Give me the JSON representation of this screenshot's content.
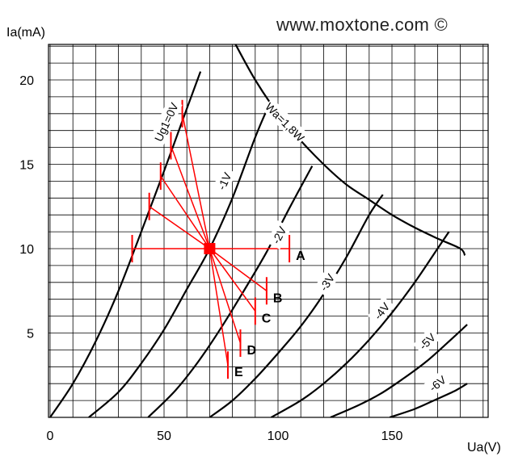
{
  "watermark": "www.moxtone.com ©",
  "chart_data": {
    "type": "line",
    "xlabel": "Ua(V)",
    "ylabel": "Ia(mA)",
    "xlim": [
      0,
      190
    ],
    "ylim": [
      0,
      22
    ],
    "xticks": [
      0,
      50,
      100,
      150
    ],
    "yticks": [
      5,
      10,
      15,
      20
    ],
    "grid": true,
    "curves": [
      {
        "name": "Ug1=0V",
        "color": "#000000",
        "points": [
          [
            0,
            0
          ],
          [
            10,
            2
          ],
          [
            20,
            4.5
          ],
          [
            30,
            7.5
          ],
          [
            40,
            11
          ],
          [
            50,
            14.6
          ],
          [
            60,
            18.3
          ],
          [
            66,
            20.5
          ]
        ]
      },
      {
        "name": "-1V",
        "color": "#000000",
        "points": [
          [
            17,
            0
          ],
          [
            30,
            1.5
          ],
          [
            40,
            3.2
          ],
          [
            50,
            5.2
          ],
          [
            60,
            7.6
          ],
          [
            70,
            10
          ],
          [
            80,
            13
          ],
          [
            90,
            16.6
          ],
          [
            96,
            18.5
          ]
        ]
      },
      {
        "name": "-2V",
        "color": "#000000",
        "points": [
          [
            43,
            0
          ],
          [
            55,
            1.6
          ],
          [
            65,
            3.3
          ],
          [
            75,
            5.3
          ],
          [
            85,
            7.5
          ],
          [
            95,
            9.8
          ],
          [
            105,
            12.4
          ],
          [
            115,
            14.9
          ]
        ]
      },
      {
        "name": "-3V",
        "color": "#000000",
        "points": [
          [
            70,
            0
          ],
          [
            80,
            1
          ],
          [
            90,
            2.3
          ],
          [
            100,
            3.8
          ],
          [
            110,
            5.4
          ],
          [
            120,
            7.3
          ],
          [
            130,
            9.5
          ],
          [
            140,
            12
          ],
          [
            146,
            13.2
          ]
        ]
      },
      {
        "name": "-4V",
        "color": "#000000",
        "points": [
          [
            97,
            0
          ],
          [
            110,
            1
          ],
          [
            120,
            2
          ],
          [
            130,
            3.2
          ],
          [
            140,
            4.6
          ],
          [
            150,
            6.2
          ],
          [
            160,
            8
          ],
          [
            170,
            10
          ],
          [
            175,
            11
          ]
        ]
      },
      {
        "name": "-5V",
        "color": "#000000",
        "points": [
          [
            123,
            0
          ],
          [
            135,
            0.7
          ],
          [
            145,
            1.4
          ],
          [
            155,
            2.3
          ],
          [
            165,
            3.3
          ],
          [
            175,
            4.5
          ],
          [
            183,
            5.5
          ]
        ]
      },
      {
        "name": "-6V",
        "color": "#000000",
        "points": [
          [
            149,
            0
          ],
          [
            160,
            0.5
          ],
          [
            170,
            1.1
          ],
          [
            178,
            1.6
          ],
          [
            183,
            2
          ]
        ]
      },
      {
        "name": "Wa=1,8W",
        "color": "#000000",
        "points": [
          [
            81,
            22.2
          ],
          [
            90,
            20
          ],
          [
            100,
            18
          ],
          [
            110,
            16.4
          ],
          [
            120,
            15
          ],
          [
            130,
            13.8
          ],
          [
            140,
            12.9
          ],
          [
            150,
            12
          ],
          [
            160,
            11.25
          ],
          [
            170,
            10.6
          ],
          [
            180,
            10
          ],
          [
            182,
            9.6
          ]
        ]
      }
    ],
    "curve_labels": [
      {
        "text": "Ug1=0V",
        "x": 51,
        "y": 17.5,
        "angle": -65
      },
      {
        "text": "-1V",
        "x": 76.5,
        "y": 14,
        "angle": -65
      },
      {
        "text": "Wa=1,8W",
        "x": 103,
        "y": 17.5,
        "angle": 45
      },
      {
        "text": "-2V",
        "x": 100.5,
        "y": 10.8,
        "angle": -62
      },
      {
        "text": "-3V",
        "x": 121.5,
        "y": 8,
        "angle": -58
      },
      {
        "text": "-4V",
        "x": 145.5,
        "y": 6.3,
        "angle": -52
      },
      {
        "text": "-5V",
        "x": 165.5,
        "y": 4.5,
        "angle": -45
      },
      {
        "text": "-6V",
        "x": 170,
        "y": 2,
        "angle": -38
      }
    ],
    "operating_point": {
      "x": 70,
      "y": 10,
      "color": "#ff0000"
    },
    "load_lines": {
      "color": "#ff0000",
      "left_ends": [
        [
          36,
          10
        ],
        [
          43.5,
          12.5
        ],
        [
          48.5,
          14.3
        ],
        [
          53,
          16.1
        ],
        [
          58,
          18
        ]
      ],
      "right_ends": [
        {
          "x": 105,
          "y": 10,
          "label": "A"
        },
        {
          "x": 95,
          "y": 7.5,
          "label": "B"
        },
        {
          "x": 90,
          "y": 6.3,
          "label": "C"
        },
        {
          "x": 83.5,
          "y": 4.4,
          "label": "D"
        },
        {
          "x": 78,
          "y": 3.1,
          "label": "E"
        }
      ]
    }
  }
}
